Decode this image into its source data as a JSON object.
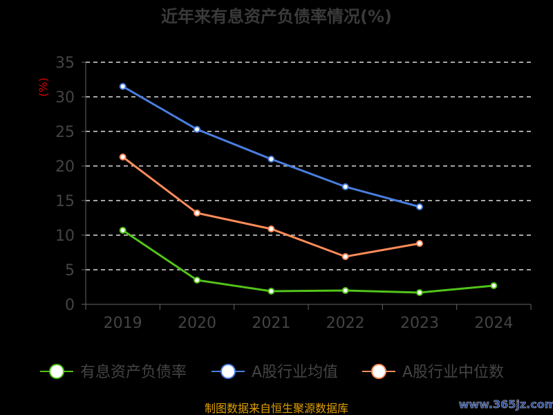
{
  "chart_data": {
    "type": "line",
    "title": "近年来有息资产负债率情况(%)",
    "ylabel": "(%)",
    "xlabel": "",
    "categories": [
      "2019",
      "2020",
      "2021",
      "2022",
      "2023",
      "2024"
    ],
    "yticks": [
      "0",
      "5",
      "10",
      "15",
      "20",
      "25",
      "30",
      "35"
    ],
    "ylim": [
      0,
      35
    ],
    "grid": true,
    "legend_position": "bottom",
    "series": [
      {
        "name": "有息资产负债率",
        "color": "#52c41a",
        "values": [
          10.7,
          3.5,
          1.9,
          2.0,
          1.7,
          2.7
        ]
      },
      {
        "name": "A股行业均值",
        "color": "#4a7fe0",
        "values": [
          31.5,
          25.3,
          21.0,
          17.0,
          14.1,
          null
        ]
      },
      {
        "name": "A股行业中位数",
        "color": "#ff8c5a",
        "values": [
          21.3,
          13.2,
          10.9,
          6.9,
          8.8,
          null
        ]
      }
    ]
  },
  "footer": {
    "source": "制图数据来自恒生聚源数据库",
    "watermark": "www.365jz.com"
  }
}
